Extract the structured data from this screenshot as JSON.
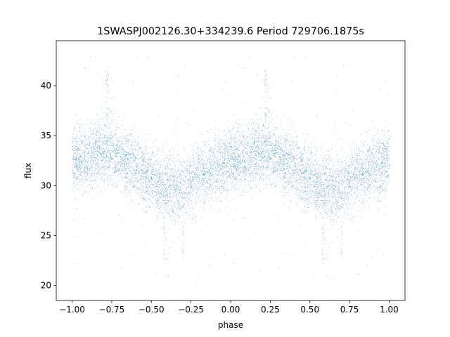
{
  "chart_data": {
    "type": "scatter",
    "title": "1SWASPJ002126.30+334239.6 Period 729706.1875s",
    "xlabel": "phase",
    "ylabel": "flux",
    "xlim": [
      -1.1,
      1.1
    ],
    "ylim": [
      18.5,
      44.5
    ],
    "x_ticks": [
      -1.0,
      -0.75,
      -0.5,
      -0.25,
      0.0,
      0.25,
      0.5,
      0.75,
      1.0
    ],
    "x_tick_labels": [
      "−1.00",
      "−0.75",
      "−0.50",
      "−0.25",
      "0.00",
      "0.25",
      "0.50",
      "0.75",
      "1.00"
    ],
    "y_ticks": [
      20,
      25,
      30,
      35,
      40
    ],
    "y_tick_labels": [
      "20",
      "25",
      "30",
      "35",
      "40"
    ],
    "grid": false,
    "point_color": "#1f77b4",
    "series": [
      {
        "phase_range": [
          -1.0,
          1.0
        ],
        "periodic_copy_offset": 1.0,
        "profile_phase": [
          0.0,
          0.1,
          0.2,
          0.3,
          0.4,
          0.5,
          0.55,
          0.6,
          0.7,
          0.8,
          0.9,
          1.0
        ],
        "profile_flux": [
          32.5,
          32.8,
          33.8,
          33.0,
          32.0,
          30.5,
          29.8,
          29.8,
          29.9,
          30.8,
          31.8,
          32.5
        ],
        "scatter_sd": 1.6,
        "outlier_fraction": 0.02,
        "n_points": 12000,
        "outlier_flux_range": [
          20,
          43.5
        ],
        "dip_phase": [
          0.58,
          0.7
        ],
        "dip_flux_range": [
          22.2,
          26.5
        ],
        "spike_phase": [
          0.22
        ],
        "spike_flux_range": [
          36.5,
          41.5
        ]
      }
    ]
  }
}
